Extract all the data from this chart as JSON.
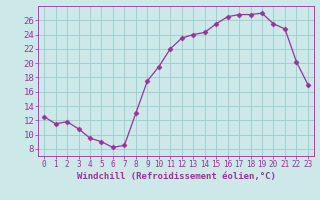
{
  "x": [
    0,
    1,
    2,
    3,
    4,
    5,
    6,
    7,
    8,
    9,
    10,
    11,
    12,
    13,
    14,
    15,
    16,
    17,
    18,
    19,
    20,
    21,
    22,
    23
  ],
  "y": [
    12.5,
    11.5,
    11.8,
    10.8,
    9.5,
    9.0,
    8.2,
    8.5,
    13.0,
    17.5,
    19.5,
    22.0,
    23.5,
    24.0,
    24.3,
    25.5,
    26.5,
    26.8,
    26.8,
    27.0,
    25.5,
    24.8,
    20.2,
    17.0
  ],
  "line_color": "#993399",
  "marker": "D",
  "marker_size": 2.5,
  "bg_color": "#cce8e8",
  "grid_color": "#99cccc",
  "xlabel": "Windchill (Refroidissement éolien,°C)",
  "ylabel": "",
  "ylim": [
    7,
    28
  ],
  "xlim": [
    -0.5,
    23.5
  ],
  "yticks": [
    8,
    10,
    12,
    14,
    16,
    18,
    20,
    22,
    24,
    26
  ],
  "xticks": [
    0,
    1,
    2,
    3,
    4,
    5,
    6,
    7,
    8,
    9,
    10,
    11,
    12,
    13,
    14,
    15,
    16,
    17,
    18,
    19,
    20,
    21,
    22,
    23
  ],
  "label_color": "#993399",
  "tick_color": "#993399",
  "axis_color": "#993399",
  "xlabel_fontsize": 6.5,
  "tick_fontsize": 6.5,
  "xtick_fontsize": 5.5
}
